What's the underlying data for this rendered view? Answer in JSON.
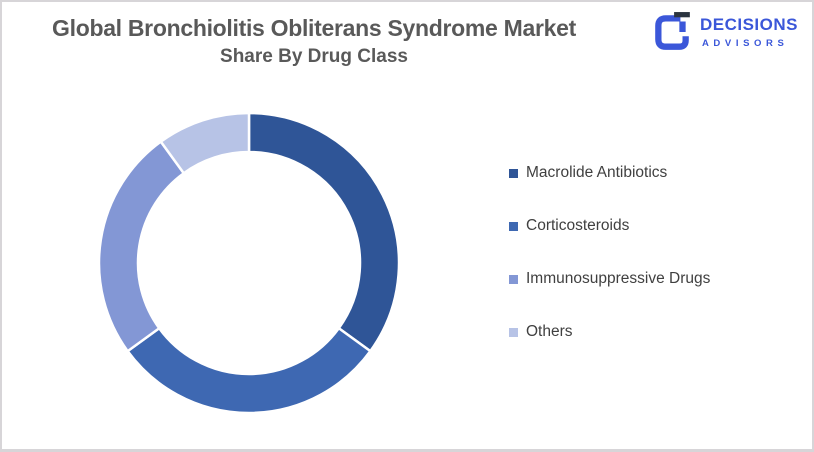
{
  "page": {
    "background": "#ffffff",
    "border_color": "#d7d5d8"
  },
  "header": {
    "title_line1": "Global Bronchiolitis Obliterans Syndrome Market",
    "title_line2": "Share By Drug Class",
    "title_color": "#595959"
  },
  "logo": {
    "name": "DECISIONS",
    "subname": "ADVISORS",
    "brand_color": "#3b57d9",
    "mark_accent_color": "#2b3440"
  },
  "chart_data": {
    "type": "pie",
    "subtype": "donut",
    "title": "Global Bronchiolitis Obliterans Syndrome Market Share By Drug Class",
    "unit": "%",
    "categories": [
      "Macrolide Antibiotics",
      "Corticosteroids",
      "Immunosuppressive Drugs",
      "Others"
    ],
    "values": [
      35,
      30,
      25,
      10
    ],
    "colors": [
      "#2f5597",
      "#3e68b2",
      "#8397d5",
      "#b7c3e6"
    ],
    "start_angle_deg": 0,
    "direction": "clockwise",
    "inner_radius_ratio": 0.74,
    "slice_border_color": "#ffffff",
    "legend_position": "right",
    "legend_text_color": "#404040",
    "data_labels": "none"
  }
}
